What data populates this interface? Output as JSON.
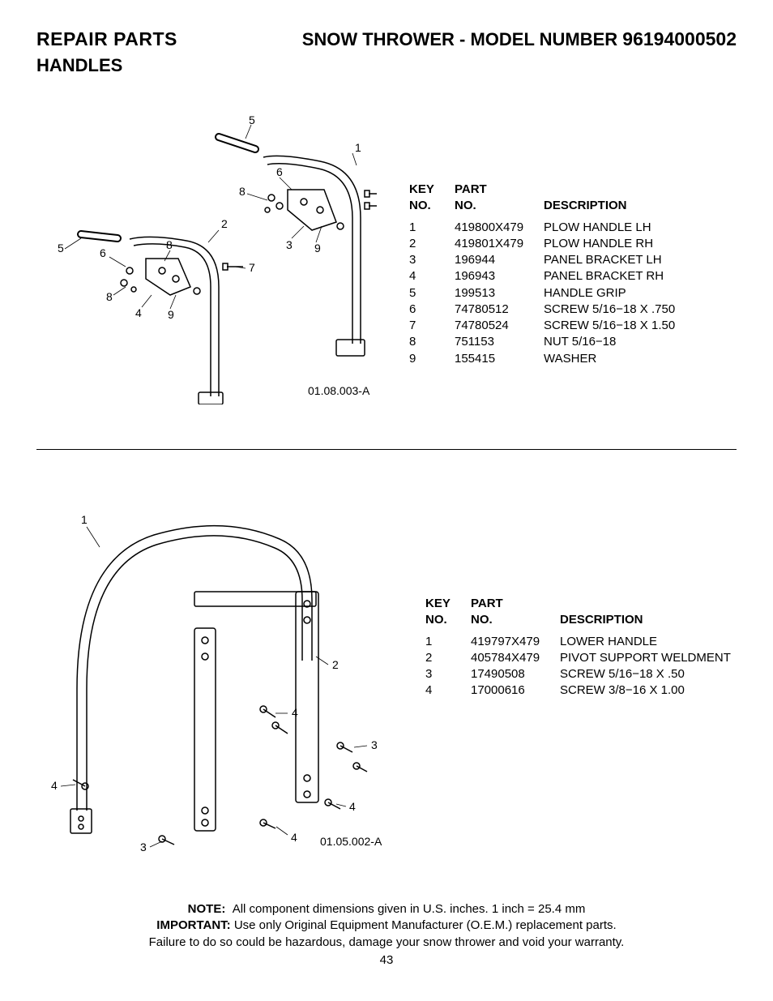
{
  "header": {
    "repair_parts": "REPAIR PARTS",
    "model_prefix": "SNOW THROWER - MODEL NUMBER",
    "model_number": "96194000502",
    "subheading": "HANDLES"
  },
  "table_headers": {
    "key_line1": "KEY",
    "key_line2": "NO.",
    "part_line1": "PART",
    "part_line2": "NO.",
    "description": "DESCRIPTION"
  },
  "section1": {
    "diagram_code": "01.08.003-A",
    "callouts": [
      "1",
      "2",
      "3",
      "4",
      "5",
      "5",
      "6",
      "6",
      "7",
      "7",
      "8",
      "8",
      "8",
      "9",
      "9"
    ],
    "rows": [
      {
        "key": "1",
        "part": "419800X479",
        "desc": "PLOW HANDLE LH"
      },
      {
        "key": "2",
        "part": "419801X479",
        "desc": "PLOW HANDLE RH"
      },
      {
        "key": "3",
        "part": "196944",
        "desc": "PANEL BRACKET LH"
      },
      {
        "key": "4",
        "part": "196943",
        "desc": "PANEL BRACKET RH"
      },
      {
        "key": "5",
        "part": "199513",
        "desc": "HANDLE GRIP"
      },
      {
        "key": "6",
        "part": "74780512",
        "desc": "SCREW 5/16−18 X .750"
      },
      {
        "key": "7",
        "part": "74780524",
        "desc": "SCREW 5/16−18 X 1.50"
      },
      {
        "key": "8",
        "part": "751153",
        "desc": "NUT 5/16−18"
      },
      {
        "key": "9",
        "part": "155415",
        "desc": "WASHER"
      }
    ]
  },
  "section2": {
    "diagram_code": "01.05.002-A",
    "callouts": [
      "1",
      "2",
      "3",
      "3",
      "4",
      "4",
      "4",
      "4"
    ],
    "rows": [
      {
        "key": "1",
        "part": "419797X479",
        "desc": "LOWER HANDLE"
      },
      {
        "key": "2",
        "part": "405784X479",
        "desc": "PIVOT SUPPORT WELDMENT"
      },
      {
        "key": "3",
        "part": "17490508",
        "desc": "SCREW 5/16−18 X .50"
      },
      {
        "key": "4",
        "part": "17000616",
        "desc": "SCREW 3/8−16 X 1.00"
      }
    ]
  },
  "footer": {
    "note_label": "NOTE:",
    "note_text": "All component dimensions given in U.S. inches.    1 inch = 25.4 mm",
    "important_label": "IMPORTANT:",
    "important_text": "Use only Original Equipment Manufacturer (O.E.M.) replacement parts.",
    "warning_text": "Failure to do so could be hazardous, damage your snow thrower and void your warranty.",
    "page_number": "43"
  },
  "style": {
    "page_bg": "#ffffff",
    "text_color": "#000000",
    "stroke": "#000000",
    "font_family": "Arial, Helvetica, sans-serif",
    "header_fontsize": 23,
    "table_fontsize": 15,
    "callout_fontsize": 14
  }
}
